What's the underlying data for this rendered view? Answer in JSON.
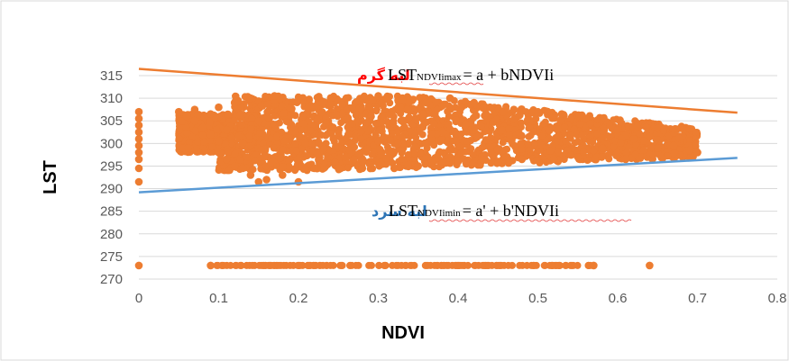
{
  "chart_data": {
    "type": "scatter",
    "title": "",
    "xlabel": "NDVI",
    "ylabel": "LST",
    "xlim": [
      0,
      0.8
    ],
    "ylim": [
      270,
      315
    ],
    "x_ticks": [
      "0",
      "0.1",
      "0.2",
      "0.3",
      "0.4",
      "0.5",
      "0.6",
      "0.7",
      "0.8"
    ],
    "y_ticks": [
      "270",
      "275",
      "280",
      "285",
      "290",
      "295",
      "300",
      "305",
      "310",
      "315"
    ],
    "grid": true,
    "legend": "none",
    "point_color": "#ED7D31",
    "series": [
      {
        "points": [
          [
            0.0,
            307.0
          ],
          [
            0.0,
            305.5
          ],
          [
            0.0,
            304.0
          ],
          [
            0.0,
            302.5
          ],
          [
            0.0,
            301.0
          ],
          [
            0.0,
            299.5
          ],
          [
            0.0,
            298.0
          ],
          [
            0.0,
            296.5
          ],
          [
            0.0,
            294.5
          ],
          [
            0.0,
            291.5
          ],
          [
            0.0,
            273.0
          ],
          [
            0.05,
            307.0
          ],
          [
            0.06,
            306.0
          ],
          [
            0.07,
            305.0
          ],
          [
            0.07,
            307.5
          ],
          [
            0.08,
            303.5
          ],
          [
            0.09,
            302.0
          ],
          [
            0.09,
            306.5
          ],
          [
            0.1,
            300.5
          ],
          [
            0.1,
            298.0
          ],
          [
            0.1,
            308.0
          ],
          [
            0.11,
            296.5
          ],
          [
            0.11,
            303.0
          ],
          [
            0.12,
            295.0
          ],
          [
            0.12,
            309.0
          ],
          [
            0.13,
            294.5
          ],
          [
            0.13,
            300.0
          ],
          [
            0.14,
            293.0
          ],
          [
            0.14,
            310.0
          ],
          [
            0.15,
            291.5
          ],
          [
            0.15,
            305.0
          ],
          [
            0.16,
            292.0
          ],
          [
            0.17,
            310.5
          ],
          [
            0.18,
            293.0
          ],
          [
            0.18,
            298.5
          ],
          [
            0.2,
            291.5
          ],
          [
            0.2,
            309.5
          ],
          [
            0.22,
            294.5
          ],
          [
            0.23,
            309.0
          ],
          [
            0.25,
            294.5
          ],
          [
            0.26,
            310.0
          ],
          [
            0.28,
            294.5
          ],
          [
            0.3,
            310.5
          ],
          [
            0.32,
            294.5
          ],
          [
            0.33,
            309.5
          ],
          [
            0.35,
            295.0
          ],
          [
            0.36,
            309.0
          ],
          [
            0.38,
            295.5
          ],
          [
            0.39,
            310.0
          ],
          [
            0.4,
            296.0
          ],
          [
            0.42,
            309.0
          ],
          [
            0.43,
            296.5
          ],
          [
            0.44,
            308.0
          ],
          [
            0.45,
            296.0
          ],
          [
            0.47,
            307.5
          ],
          [
            0.48,
            296.5
          ],
          [
            0.5,
            307.0
          ],
          [
            0.52,
            296.5
          ],
          [
            0.53,
            306.5
          ],
          [
            0.55,
            297.0
          ],
          [
            0.56,
            305.5
          ],
          [
            0.58,
            297.0
          ],
          [
            0.6,
            303.0
          ],
          [
            0.61,
            296.5
          ],
          [
            0.62,
            301.0
          ],
          [
            0.64,
            301.5
          ],
          [
            0.65,
            299.0
          ],
          [
            0.67,
            299.5
          ],
          [
            0.69,
            298.5
          ],
          [
            0.7,
            298.0
          ],
          [
            0.09,
            273.0
          ],
          [
            0.57,
            273.0
          ],
          [
            0.64,
            273.0
          ]
        ]
      }
    ],
    "lines": [
      {
        "name": "LSTNDVIimax",
        "color": "#ED7D31",
        "x": [
          0,
          0.75
        ],
        "y": [
          316.5,
          306.8
        ]
      },
      {
        "name": "LSTNDVIimin",
        "color": "#5B9BD5",
        "x": [
          0,
          0.75
        ],
        "y": [
          289.2,
          296.8
        ]
      }
    ],
    "annotations": {
      "hot_edge": {
        "label": "لبه گرم",
        "color": "#FF0000"
      },
      "hot_eq": {
        "lhs": "LST",
        "sub": "NDVIimax",
        "rhs": "= a + bNDVIi"
      },
      "cold_edge": {
        "label": "لبه سرد",
        "color": "#2E75B6"
      },
      "cold_eq": {
        "lhs": "LST",
        "sub": "NDVIimin",
        "rhs": "= a' + b'NDVIi"
      }
    }
  }
}
